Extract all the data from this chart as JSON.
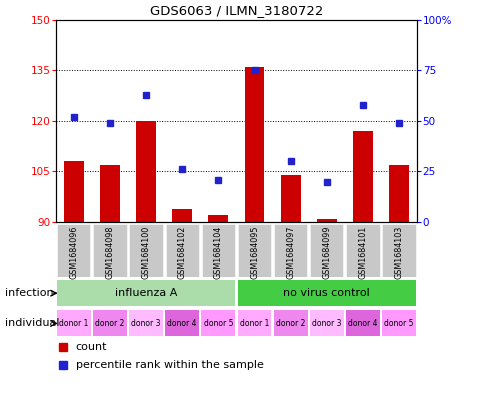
{
  "title": "GDS6063 / ILMN_3180722",
  "samples": [
    "GSM1684096",
    "GSM1684098",
    "GSM1684100",
    "GSM1684102",
    "GSM1684104",
    "GSM1684095",
    "GSM1684097",
    "GSM1684099",
    "GSM1684101",
    "GSM1684103"
  ],
  "counts": [
    108,
    107,
    120,
    94,
    92,
    136,
    104,
    91,
    117,
    107
  ],
  "percentiles": [
    52,
    49,
    63,
    26,
    21,
    75,
    30,
    20,
    58,
    49
  ],
  "ylim_left": [
    90,
    150
  ],
  "ylim_right": [
    0,
    100
  ],
  "yticks_left": [
    90,
    105,
    120,
    135,
    150
  ],
  "yticks_right": [
    0,
    25,
    50,
    75,
    100
  ],
  "bar_color": "#cc0000",
  "dot_color": "#2222cc",
  "bar_base": 90,
  "infection_groups": [
    {
      "label": "influenza A",
      "start": 0,
      "end": 5,
      "color": "#aaddaa"
    },
    {
      "label": "no virus control",
      "start": 5,
      "end": 10,
      "color": "#44cc44"
    }
  ],
  "individuals": [
    "donor 1",
    "donor 2",
    "donor 3",
    "donor 4",
    "donor 5",
    "donor 1",
    "donor 2",
    "donor 3",
    "donor 4",
    "donor 5"
  ],
  "ind_colors": [
    "#ffaaff",
    "#ee88ee",
    "#ffbbff",
    "#dd66dd",
    "#ff99ff",
    "#ffaaff",
    "#ee88ee",
    "#ffbbff",
    "#dd66dd",
    "#ff99ff"
  ],
  "infection_label": "infection",
  "individual_label": "individual",
  "legend_count_label": "count",
  "legend_percentile_label": "percentile rank within the sample",
  "background_sample": "#c8c8c8",
  "grid_yticks": [
    105,
    120,
    135,
    150
  ]
}
